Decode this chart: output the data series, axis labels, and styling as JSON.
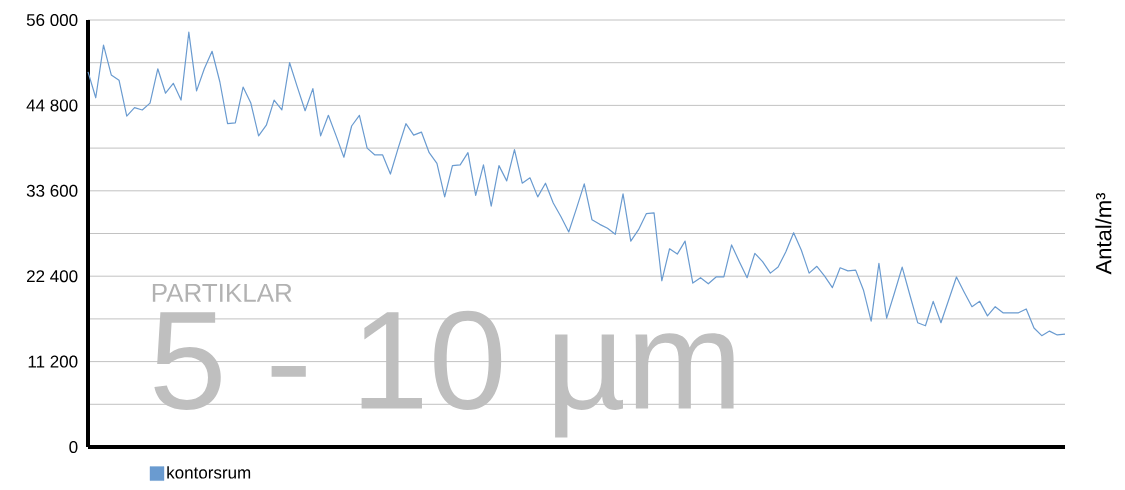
{
  "chart_data": {
    "type": "line",
    "ylabel": "Antal/m³",
    "annotations": [
      "PARTIKLAR",
      "5 - 10 µm"
    ],
    "categories": [
      null,
      null,
      null,
      null,
      null,
      null,
      null,
      null,
      null,
      null,
      null,
      null,
      null,
      null,
      null,
      null,
      null,
      null,
      null,
      null,
      null,
      null,
      null,
      null,
      null,
      null,
      null,
      null,
      null,
      null,
      null,
      null,
      null,
      null,
      null,
      null,
      null,
      null,
      null,
      null,
      null,
      null,
      null,
      null,
      null,
      null,
      null,
      null,
      null,
      null,
      null,
      null,
      null,
      null,
      null,
      null,
      null,
      null,
      null,
      null,
      null,
      null,
      null,
      null,
      null,
      null,
      null,
      null,
      null,
      null,
      null,
      null,
      null,
      null,
      null,
      null,
      null,
      null,
      null,
      null,
      null,
      null,
      null,
      null,
      null,
      null,
      null,
      null,
      null,
      null,
      null,
      null,
      null,
      null,
      null,
      null,
      null,
      null,
      null,
      null,
      null,
      null,
      null,
      null,
      null,
      null,
      null,
      null,
      null,
      null,
      null,
      null,
      null,
      null,
      null,
      null,
      null,
      null,
      null,
      null,
      null,
      null,
      null,
      null,
      null,
      null,
      null
    ],
    "series": [
      {
        "name": "kontorsrum",
        "color": "#6a9bd0",
        "values": [
          49200,
          45800,
          52700,
          48800,
          48100,
          43400,
          44500,
          44200,
          45100,
          49600,
          46400,
          47700,
          45500,
          54400,
          46700,
          49600,
          51900,
          47900,
          42400,
          42500,
          47200,
          45100,
          40800,
          42200,
          45500,
          44200,
          50400,
          47200,
          44100,
          47000,
          40800,
          43500,
          40800,
          38000,
          42100,
          43500,
          39200,
          38300,
          38300,
          35800,
          39200,
          42400,
          40900,
          41300,
          38600,
          37200,
          32800,
          36900,
          37000,
          38600,
          33000,
          37000,
          31600,
          36900,
          34900,
          39000,
          34600,
          35300,
          32800,
          34600,
          32000,
          30200,
          28200,
          31300,
          34500,
          29800,
          29200,
          28700,
          27900,
          33200,
          27000,
          28500,
          30600,
          30700,
          21800,
          26000,
          25300,
          27000,
          21500,
          22200,
          21400,
          22300,
          22300,
          26500,
          24300,
          22200,
          25400,
          24300,
          22800,
          23600,
          25600,
          28100,
          25800,
          22800,
          23700,
          22400,
          20900,
          23500,
          23100,
          23200,
          20600,
          16500,
          24100,
          16900,
          20200,
          23600,
          19900,
          16300,
          15900,
          19100,
          16300,
          19300,
          22300,
          20300,
          18400,
          19100,
          17200,
          18400,
          17600,
          17600,
          17600,
          18100,
          15600,
          14600,
          15200,
          14700,
          14800
        ]
      }
    ],
    "ylim": [
      0,
      56000
    ],
    "yticks": [
      {
        "value": 0,
        "label": "0"
      },
      {
        "value": 5600,
        "label": null
      },
      {
        "value": 11200,
        "label": "11 200"
      },
      {
        "value": 16800,
        "label": null
      },
      {
        "value": 22400,
        "label": "22 400"
      },
      {
        "value": 28000,
        "label": null
      },
      {
        "value": 33600,
        "label": "33 600"
      },
      {
        "value": 39200,
        "label": null
      },
      {
        "value": 44800,
        "label": "44 800"
      },
      {
        "value": 50400,
        "label": null
      },
      {
        "value": 56000,
        "label": "56 000"
      }
    ],
    "grid": "y",
    "legend": "bottom",
    "marker": "none",
    "line_style": "solid"
  }
}
